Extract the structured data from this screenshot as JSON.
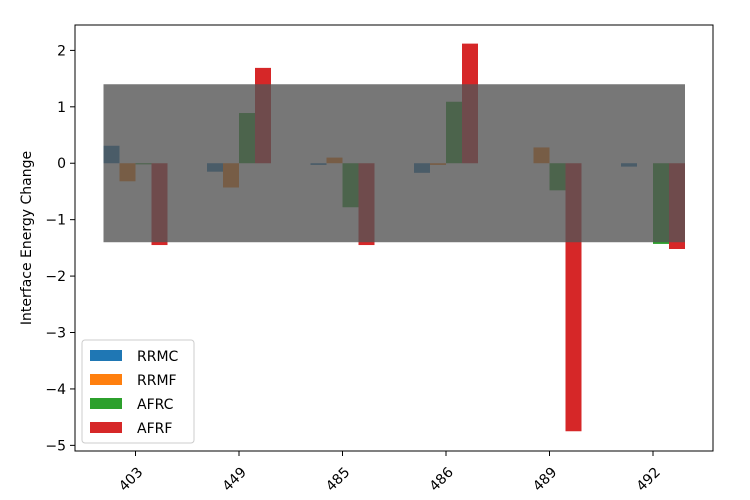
{
  "chart_data": {
    "type": "bar",
    "categories": [
      "403",
      "449",
      "485",
      "486",
      "489",
      "492"
    ],
    "series": [
      {
        "name": "RRMC",
        "color": "#1f77b4",
        "values": [
          0.31,
          -0.15,
          -0.03,
          -0.17,
          0.0,
          -0.06
        ]
      },
      {
        "name": "RRMF",
        "color": "#ff7f0e",
        "values": [
          -0.32,
          -0.43,
          0.1,
          -0.03,
          0.28,
          0.0
        ]
      },
      {
        "name": "AFRC",
        "color": "#2ca02c",
        "values": [
          -0.02,
          0.89,
          -0.78,
          1.09,
          -0.48,
          -1.43
        ]
      },
      {
        "name": "AFRF",
        "color": "#d62728",
        "values": [
          -1.45,
          1.69,
          -1.45,
          2.12,
          -4.75,
          -1.52
        ]
      }
    ],
    "band": {
      "y_min": -1.4,
      "y_max": 1.4,
      "color": "#555555",
      "opacity": 0.8
    },
    "title": "",
    "xlabel": "",
    "ylabel": "Interface Energy Change",
    "ylim": [
      -5.1,
      2.45
    ],
    "yticks": [
      -5,
      -4,
      -3,
      -2,
      -1,
      0,
      1,
      2
    ],
    "ytick_labels": [
      "−5",
      "−4",
      "−3",
      "−2",
      "−1",
      "0",
      "1",
      "2"
    ],
    "legend_position": "lower-left",
    "grid": false
  }
}
